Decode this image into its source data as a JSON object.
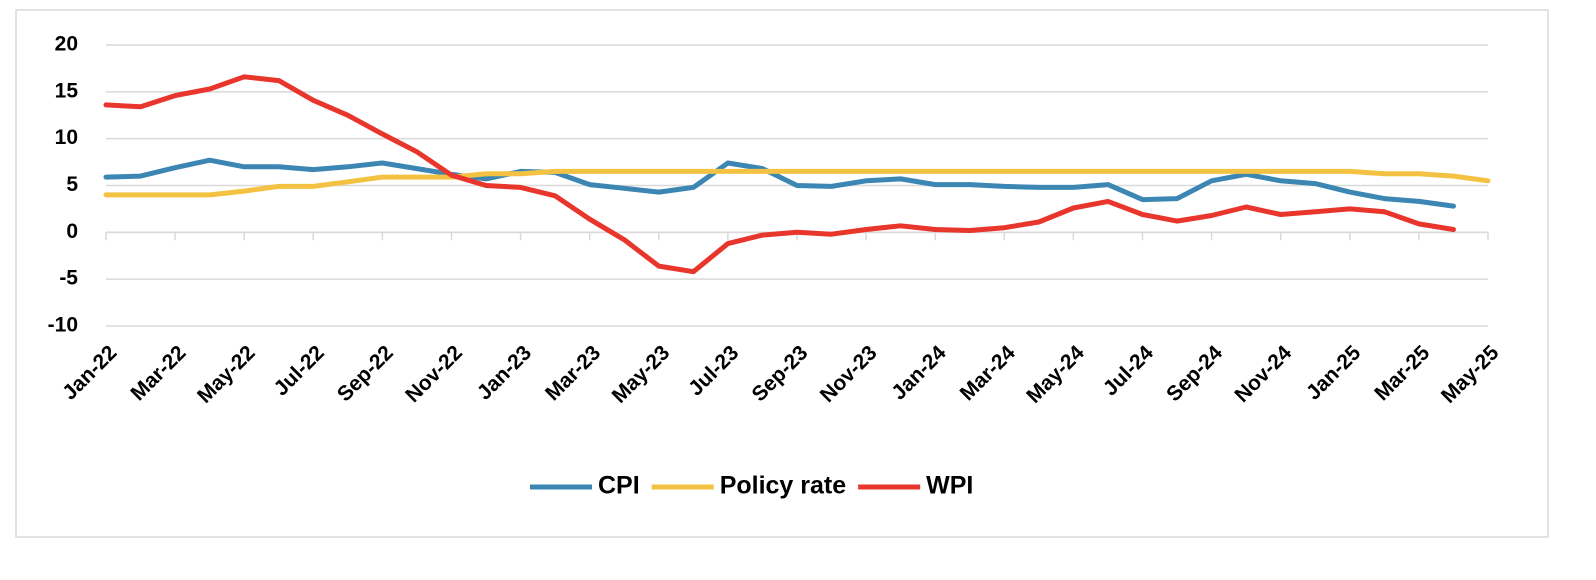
{
  "chart_data": {
    "type": "line",
    "categories": [
      "Jan-22",
      null,
      "Mar-22",
      null,
      "May-22",
      null,
      "Jul-22",
      null,
      "Sep-22",
      null,
      "Nov-22",
      null,
      "Jan-23",
      null,
      "Mar-23",
      null,
      "May-23",
      null,
      "Jul-23",
      null,
      "Sep-23",
      null,
      "Nov-23",
      null,
      "Jan-24",
      null,
      "Mar-24",
      null,
      "May-24",
      null,
      "Jul-24",
      null,
      "Sep-24",
      null,
      "Nov-24",
      null,
      "Jan-25",
      null,
      "Mar-25",
      null,
      "May-25"
    ],
    "series": [
      {
        "name": "CPI",
        "color": "#3b86b3",
        "values": [
          5.9,
          6.0,
          6.9,
          7.7,
          7.0,
          7.0,
          6.7,
          7.0,
          7.4,
          6.8,
          6.2,
          5.7,
          6.5,
          6.4,
          5.1,
          4.7,
          4.3,
          4.8,
          7.4,
          6.8,
          5.0,
          4.9,
          5.5,
          5.7,
          5.1,
          5.1,
          4.9,
          4.8,
          4.8,
          5.1,
          3.5,
          3.6,
          5.5,
          6.2,
          5.5,
          5.2,
          4.3,
          3.6,
          3.3,
          2.8,
          null
        ]
      },
      {
        "name": "Policy rate",
        "color": "#f4c242",
        "values": [
          4.0,
          4.0,
          4.0,
          4.0,
          4.4,
          4.9,
          4.9,
          5.4,
          5.9,
          5.9,
          5.9,
          6.25,
          6.25,
          6.5,
          6.5,
          6.5,
          6.5,
          6.5,
          6.5,
          6.5,
          6.5,
          6.5,
          6.5,
          6.5,
          6.5,
          6.5,
          6.5,
          6.5,
          6.5,
          6.5,
          6.5,
          6.5,
          6.5,
          6.5,
          6.5,
          6.5,
          6.5,
          6.25,
          6.25,
          6.0,
          5.5
        ]
      },
      {
        "name": "WPI",
        "color": "#e8362c",
        "values": [
          13.6,
          13.4,
          14.6,
          15.3,
          16.6,
          16.2,
          14.1,
          12.5,
          10.5,
          8.6,
          6.1,
          5.0,
          4.8,
          3.9,
          1.4,
          -0.8,
          -3.6,
          -4.2,
          -1.2,
          -0.3,
          0.0,
          -0.2,
          0.3,
          0.7,
          0.3,
          0.2,
          0.5,
          1.1,
          2.6,
          3.3,
          1.9,
          1.2,
          1.8,
          2.7,
          1.9,
          2.2,
          2.5,
          2.2,
          0.9,
          0.3,
          null
        ]
      }
    ],
    "ylim": [
      -10,
      20
    ],
    "yticks": [
      -10,
      -5,
      0,
      5,
      10,
      15,
      20
    ],
    "grid": true,
    "legend": "bottom"
  }
}
